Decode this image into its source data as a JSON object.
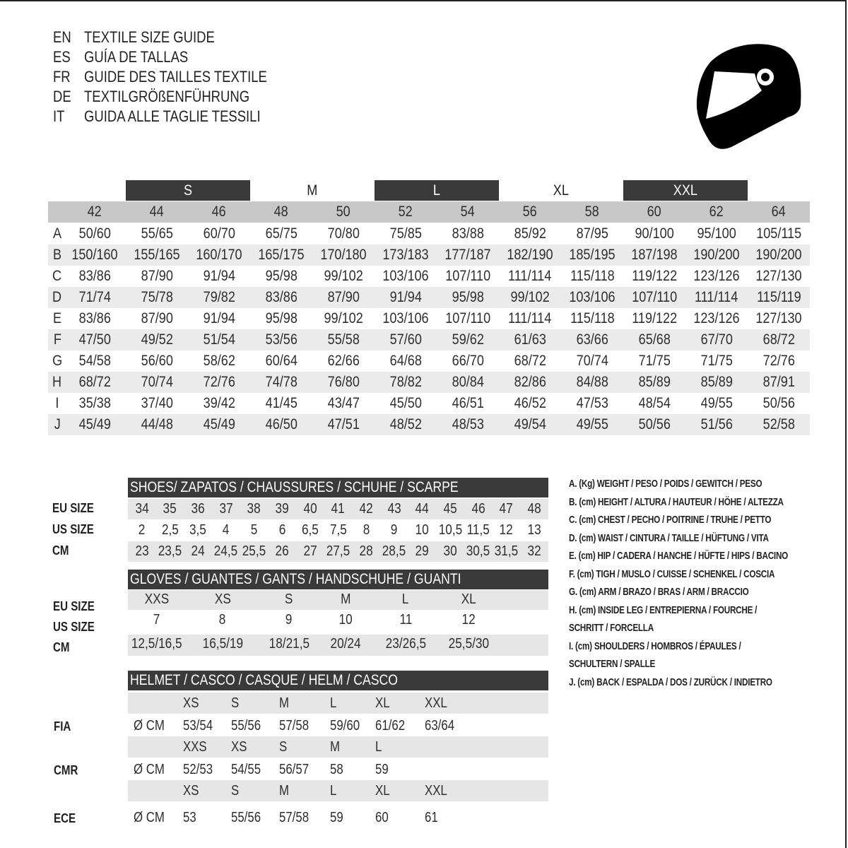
{
  "title_lines": [
    {
      "code": "EN",
      "text": "TEXTILE SIZE GUIDE"
    },
    {
      "code": "ES",
      "text": "GUÍA DE TALLAS"
    },
    {
      "code": "FR",
      "text": "GUIDE DES TAILLES TEXTILE"
    },
    {
      "code": "DE",
      "text": "TEXTILGRÖßENFÜHRUNG"
    },
    {
      "code": "IT",
      "text": "GUIDA ALLE TAGLIE TESSILI"
    }
  ],
  "logo_icon": "helmet-icon",
  "colors": {
    "dark_bar": "#3a3a3a",
    "header_grey": "#c8c8c8",
    "stripe": "#ebebeb",
    "text": "#2e2e2e"
  },
  "textile_table": {
    "size_groups": [
      "S",
      "M",
      "L",
      "XL",
      "XXL"
    ],
    "sizes": [
      "42",
      "44",
      "46",
      "48",
      "50",
      "52",
      "54",
      "56",
      "58",
      "60",
      "62",
      "64"
    ],
    "rows": [
      {
        "label": "A",
        "values": [
          "50/60",
          "55/65",
          "60/70",
          "65/75",
          "70/80",
          "75/85",
          "83/88",
          "85/92",
          "87/95",
          "90/100",
          "95/100",
          "105/115"
        ]
      },
      {
        "label": "B",
        "values": [
          "150/160",
          "155/165",
          "160/170",
          "165/175",
          "170/180",
          "173/183",
          "177/187",
          "182/190",
          "185/195",
          "187/198",
          "190/200",
          "190/200"
        ]
      },
      {
        "label": "C",
        "values": [
          "83/86",
          "87/90",
          "91/94",
          "95/98",
          "99/102",
          "103/106",
          "107/110",
          "111/114",
          "115/118",
          "119/122",
          "123/126",
          "127/130"
        ]
      },
      {
        "label": "D",
        "values": [
          "71/74",
          "75/78",
          "79/82",
          "83/86",
          "87/90",
          "91/94",
          "95/98",
          "99/102",
          "103/106",
          "107/110",
          "111/114",
          "115/119"
        ]
      },
      {
        "label": "E",
        "values": [
          "83/86",
          "87/90",
          "91/94",
          "95/98",
          "99/102",
          "103/106",
          "107/110",
          "111/114",
          "115/118",
          "119/122",
          "123/126",
          "127/130"
        ]
      },
      {
        "label": "F",
        "values": [
          "47/50",
          "49/52",
          "51/54",
          "53/56",
          "55/58",
          "57/60",
          "59/62",
          "61/63",
          "63/66",
          "65/68",
          "67/70",
          "68/72"
        ]
      },
      {
        "label": "G",
        "values": [
          "54/58",
          "56/60",
          "58/62",
          "60/64",
          "62/66",
          "64/68",
          "66/70",
          "68/72",
          "70/74",
          "71/75",
          "71/75",
          "72/76"
        ]
      },
      {
        "label": "H",
        "values": [
          "68/72",
          "70/74",
          "72/76",
          "74/78",
          "76/80",
          "78/82",
          "80/84",
          "82/86",
          "84/88",
          "85/89",
          "85/89",
          "87/91"
        ]
      },
      {
        "label": "I",
        "values": [
          "35/38",
          "37/40",
          "39/42",
          "41/45",
          "43/47",
          "45/50",
          "46/51",
          "46/52",
          "47/53",
          "48/54",
          "49/55",
          "50/56"
        ]
      },
      {
        "label": "J",
        "values": [
          "45/49",
          "44/48",
          "45/49",
          "46/50",
          "47/51",
          "48/52",
          "48/53",
          "49/54",
          "49/55",
          "50/56",
          "51/56",
          "52/58"
        ]
      }
    ]
  },
  "shoes": {
    "title": "SHOES/ ZAPATOS / CHAUSSURES / SCHUHE / SCARPE",
    "rows": [
      {
        "label": "EU SIZE",
        "values": [
          "34",
          "35",
          "36",
          "37",
          "38",
          "39",
          "40",
          "41",
          "42",
          "43",
          "44",
          "45",
          "46",
          "47",
          "48"
        ]
      },
      {
        "label": "US SIZE",
        "values": [
          "2",
          "2,5",
          "3,5",
          "4",
          "5",
          "6",
          "6,5",
          "7,5",
          "8",
          "9",
          "10",
          "10,5",
          "11,5",
          "12",
          "13"
        ]
      },
      {
        "label": "CM",
        "values": [
          "23",
          "23,5",
          "24",
          "24,5",
          "25,5",
          "26",
          "27",
          "27,5",
          "28",
          "28,5",
          "29",
          "30",
          "30,5",
          "31,5",
          "32"
        ]
      }
    ]
  },
  "gloves": {
    "title": "GLOVES / GUANTES / GANTS / HANDSCHUHE / GUANTI",
    "rows": [
      {
        "label": "EU SIZE",
        "values": [
          "XXS",
          "XS",
          "S",
          "M",
          "L",
          "XL"
        ]
      },
      {
        "label": "US SIZE",
        "values": [
          "7",
          "8",
          "9",
          "10",
          "11",
          "12"
        ]
      },
      {
        "label": "CM",
        "values": [
          "12,5/16,5",
          "16,5/19",
          "18/21,5",
          "20/24",
          "23/26,5",
          "25,5/30"
        ]
      }
    ]
  },
  "helmet": {
    "title": "HELMET / CASCO / CASQUE / HELM / CASCO",
    "unit": "Ø CM",
    "standards": [
      {
        "label": "FIA",
        "sizes": [
          "XS",
          "S",
          "M",
          "L",
          "XL",
          "XXL"
        ],
        "values": [
          "53/54",
          "55/56",
          "57/58",
          "59/60",
          "61/62",
          "63/64"
        ]
      },
      {
        "label": "CMR",
        "sizes": [
          "XXS",
          "XS",
          "S",
          "M",
          "L"
        ],
        "values": [
          "52/53",
          "54/55",
          "56/57",
          "58",
          "59"
        ]
      },
      {
        "label": "ECE",
        "sizes": [
          "XS",
          "S",
          "M",
          "L",
          "XL",
          "XXL"
        ],
        "values": [
          "53",
          "55/56",
          "57/58",
          "59",
          "60",
          "61"
        ]
      }
    ]
  },
  "legend": [
    "A. (Kg) WEIGHT / PESO / POIDS / GEWITCH / PESO",
    "B. (cm) HEIGHT / ALTURA / HAUTEUR / HÖHE / ALTEZZA",
    "C. (cm) CHEST / PECHO / POITRINE / TRUHE / PETTO",
    "D. (cm) WAIST / CINTURA / TAILLE / HÜFTUNG / VITA",
    "E. (cm) HIP / CADERA / HANCHE / HÜFTE / HIPS /  BACINO",
    "F.  (cm) TIGH / MUSLO / CUISSE / SCHENKEL / COSCIA",
    "G. (cm) ARM  / BRAZO / BRAS / ARM / BRACCIO",
    "H. (cm) INSIDE LEG / ENTREPIERNA / FOURCHE /",
    "SCHRITT / FORCELLA",
    "I.  (cm) SHOULDERS / HOMBROS / ÉPAULES /",
    "SCHULTERN / SPALLE",
    "J. (cm) BACK / ESPALDA / DOS / ZURÜCK / INDIETRO"
  ]
}
